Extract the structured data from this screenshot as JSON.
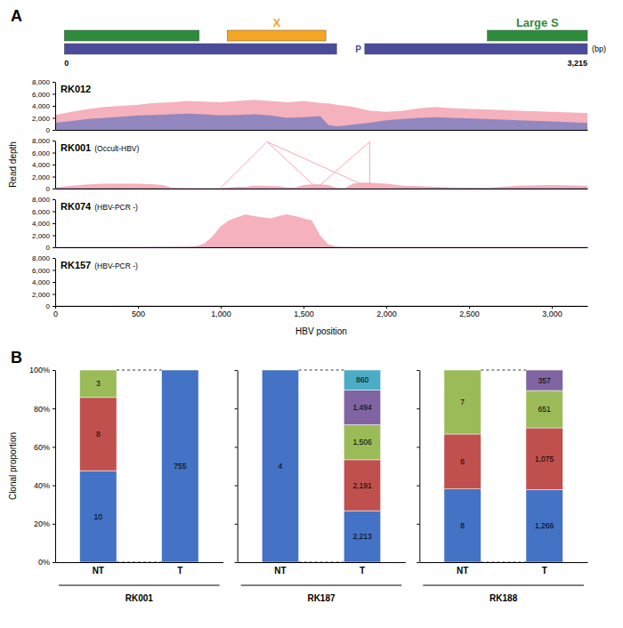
{
  "chart_data": [
    {
      "type": "segments",
      "title": "A",
      "xlim": [
        0,
        3215
      ],
      "tick_labels": false,
      "rows": [
        [
          {
            "start": 55,
            "end": 870,
            "color": "#2e8b3c"
          },
          {
            "start": 1040,
            "end": 1635,
            "color": "#f5a623",
            "label": "X"
          },
          {
            "start": 2610,
            "end": 3215,
            "color": "#2e8b3c",
            "label": "Large S"
          }
        ],
        [
          {
            "start": 55,
            "end": 1700,
            "color": "#4b4b9c"
          },
          {
            "start": 1870,
            "end": 3215,
            "color": "#4b4b9c",
            "label": "P"
          }
        ]
      ],
      "annotations": [
        {
          "text": "0",
          "x": 55
        },
        {
          "text": "3,215",
          "x": 3215
        },
        {
          "text": "(bp)"
        }
      ]
    },
    {
      "type": "area",
      "title": "RK012",
      "xlim": [
        0,
        3215
      ],
      "ylim": [
        0,
        8000
      ],
      "yticks": [
        0,
        {
          "value": 2000,
          "label": "2,000"
        },
        {
          "value": 4000,
          "label": "4,000"
        },
        {
          "value": 6000,
          "label": "6,000"
        },
        {
          "value": 8000,
          "label": "8,000"
        }
      ],
      "tick_labels": "y",
      "series": [
        {
          "color": "#f4a9b5",
          "x": [
            0,
            100,
            200,
            300,
            400,
            500,
            600,
            700,
            800,
            900,
            1000,
            1100,
            1200,
            1300,
            1400,
            1500,
            1600,
            1650,
            1700,
            1750,
            1800,
            1900,
            2000,
            2100,
            2200,
            2300,
            2400,
            2600,
            2800,
            3000,
            3200,
            3215
          ],
          "values": [
            2500,
            3000,
            3500,
            3800,
            4000,
            4200,
            4500,
            4600,
            4800,
            4700,
            4600,
            4800,
            5000,
            4800,
            4600,
            4800,
            4500,
            4400,
            4200,
            4000,
            3800,
            3200,
            3000,
            3200,
            3600,
            3800,
            3600,
            3400,
            3200,
            3000,
            2800,
            2800
          ]
        },
        {
          "color": "#8080c0",
          "x": [
            0,
            100,
            200,
            300,
            400,
            500,
            600,
            700,
            800,
            900,
            1000,
            1100,
            1200,
            1300,
            1400,
            1500,
            1600,
            1650,
            1700,
            1750,
            1800,
            1900,
            2000,
            2100,
            2200,
            2300,
            2400,
            2600,
            2800,
            3000,
            3200,
            3215
          ],
          "values": [
            1200,
            1500,
            1800,
            2000,
            2200,
            2400,
            2500,
            2600,
            2700,
            2600,
            2400,
            2500,
            2600,
            2400,
            2000,
            2100,
            2300,
            800,
            600,
            700,
            900,
            1200,
            1600,
            1800,
            2000,
            2100,
            2000,
            1800,
            1600,
            1400,
            1200,
            1200
          ]
        }
      ]
    },
    {
      "type": "area",
      "title": "RK001",
      "subtitle": "(Occult-HBV)",
      "ylabel": "Read depth",
      "xlim": [
        0,
        3215
      ],
      "ylim": [
        0,
        8000
      ],
      "yticks": [
        0,
        {
          "value": 2000,
          "label": "2,000"
        },
        {
          "value": 4000,
          "label": "4,000"
        },
        {
          "value": 6000,
          "label": "6,000"
        },
        {
          "value": 8000,
          "label": "8,000"
        }
      ],
      "tick_labels": "y",
      "series": [
        {
          "color": "#f4a9b5",
          "x": [
            0,
            100,
            200,
            300,
            400,
            500,
            600,
            650,
            700,
            750,
            800,
            850,
            900,
            950,
            1000,
            1050,
            1100,
            1150,
            1200,
            1250,
            1300,
            1350,
            1400,
            1450,
            1500,
            1550,
            1600,
            1650,
            1700,
            1750,
            1800,
            1850,
            1900,
            1950,
            2000,
            2100,
            2200,
            2400,
            2600,
            2800,
            3000,
            3200,
            3215
          ],
          "values": [
            200,
            500,
            700,
            800,
            800,
            800,
            700,
            600,
            200,
            100,
            100,
            80,
            80,
            80,
            100,
            200,
            300,
            300,
            500,
            500,
            400,
            400,
            200,
            200,
            600,
            700,
            700,
            600,
            100,
            80,
            800,
            1000,
            1000,
            900,
            800,
            500,
            400,
            200,
            100,
            500,
            600,
            500,
            500
          ]
        },
        {
          "color": "#8080c0",
          "x": [
            0,
            200,
            400,
            600,
            700,
            800,
            1000,
            1500,
            2000,
            2200,
            2400,
            2600,
            2800,
            3000,
            3200,
            3215
          ],
          "values": [
            60,
            60,
            60,
            60,
            50,
            40,
            40,
            40,
            40,
            60,
            60,
            60,
            60,
            60,
            60,
            60
          ]
        },
        {
          "type": "line",
          "color": "#f4a9b5",
          "x": [
            1000,
            1280
          ],
          "values": [
            100,
            7800
          ]
        },
        {
          "type": "line",
          "color": "#f4a9b5",
          "x": [
            1280,
            1580
          ],
          "values": [
            7800,
            100
          ]
        },
        {
          "type": "line",
          "color": "#f4a9b5",
          "x": [
            1280,
            1900
          ],
          "values": [
            7800,
            100
          ]
        },
        {
          "type": "line",
          "color": "#f4a9b5",
          "x": [
            1580,
            1900
          ],
          "values": [
            100,
            7800
          ]
        },
        {
          "type": "line",
          "color": "#f4a9b5",
          "x": [
            1900,
            1900
          ],
          "values": [
            100,
            7800
          ]
        }
      ]
    },
    {
      "type": "area",
      "title": "RK074",
      "subtitle": "(HBV-PCR -)",
      "xlim": [
        0,
        3215
      ],
      "ylim": [
        0,
        8000
      ],
      "yticks": [
        0,
        {
          "value": 2000,
          "label": "2,000"
        },
        {
          "value": 4000,
          "label": "4,000"
        },
        {
          "value": 6000,
          "label": "6,000"
        },
        {
          "value": 8000,
          "label": "8,000"
        }
      ],
      "tick_labels": "y",
      "series": [
        {
          "color": "#f4a9b5",
          "x": [
            0,
            100,
            200,
            300,
            400,
            500,
            600,
            700,
            800,
            850,
            900,
            950,
            1000,
            1050,
            1100,
            1150,
            1200,
            1250,
            1300,
            1350,
            1400,
            1450,
            1500,
            1550,
            1600,
            1650,
            1700,
            1800,
            2000,
            2200,
            2400,
            2600,
            2800,
            3000,
            3200,
            3215
          ],
          "values": [
            30,
            30,
            30,
            30,
            30,
            50,
            80,
            80,
            100,
            200,
            600,
            1800,
            3500,
            4500,
            5000,
            5500,
            5200,
            5000,
            4800,
            5200,
            5500,
            5200,
            4800,
            4500,
            2000,
            500,
            100,
            50,
            30,
            30,
            30,
            30,
            30,
            30,
            30,
            30
          ]
        },
        {
          "color": "#8080c0",
          "x": [
            0,
            200,
            400,
            600,
            800,
            1000,
            1200,
            1400,
            1600,
            1800,
            2000,
            2200,
            2400,
            2600,
            2800,
            3000,
            3200,
            3215
          ],
          "values": [
            20,
            30,
            30,
            30,
            30,
            30,
            30,
            30,
            30,
            20,
            20,
            20,
            20,
            20,
            20,
            20,
            20,
            20
          ]
        }
      ]
    },
    {
      "type": "area",
      "title": "RK157",
      "subtitle": "(HBV-PCR -)",
      "xlabel": "HBV position",
      "xlim": [
        0,
        3215
      ],
      "ylim": [
        0,
        8000
      ],
      "xticks": [
        0,
        500,
        {
          "value": 1000,
          "label": "1,000"
        },
        {
          "value": 1500,
          "label": "1,500"
        },
        {
          "value": 2000,
          "label": "2,000"
        },
        {
          "value": 2500,
          "label": "2,500"
        },
        {
          "value": 3000,
          "label": "3,000"
        }
      ],
      "yticks": [
        0,
        {
          "value": 2000,
          "label": "2,000"
        },
        {
          "value": 4000,
          "label": "4,000"
        },
        {
          "value": 6000,
          "label": "6,000"
        },
        {
          "value": 8000,
          "label": "8,000"
        }
      ],
      "series": [
        {
          "color": "#f4a9b5",
          "x": [
            0,
            200,
            400,
            600,
            800,
            1000,
            1200,
            1400,
            1600,
            1800,
            2000,
            2200,
            2400,
            2600,
            2800,
            3000,
            3200,
            3215
          ],
          "values": [
            40,
            50,
            60,
            60,
            60,
            70,
            80,
            70,
            60,
            60,
            70,
            80,
            90,
            70,
            60,
            60,
            50,
            50
          ]
        },
        {
          "color": "#8080c0",
          "x": [
            0,
            200,
            400,
            600,
            800,
            1000,
            1200,
            1400,
            1600,
            1800,
            2000,
            2200,
            2400,
            2600,
            2800,
            3000,
            3200,
            3215
          ],
          "values": [
            30,
            35,
            40,
            40,
            40,
            45,
            50,
            45,
            40,
            40,
            45,
            50,
            55,
            45,
            40,
            40,
            35,
            35
          ]
        }
      ]
    },
    {
      "type": "bar",
      "stacked": true,
      "title": "B",
      "xlabel": "RK001",
      "ylabel": "Clonal proportion",
      "categories": [
        "NT",
        "T"
      ],
      "ylim": [
        0,
        100
      ],
      "yticks": [
        {
          "value": 0,
          "label": "0%"
        },
        {
          "value": 20,
          "label": "20%"
        },
        {
          "value": 40,
          "label": "40%"
        },
        {
          "value": 60,
          "label": "60%"
        },
        {
          "value": 80,
          "label": "80%"
        },
        {
          "value": 100,
          "label": "100%"
        }
      ],
      "series": [
        {
          "color": "#4472c4",
          "values": [
            47.619047619,
            100
          ],
          "labels": [
            "10",
            "755"
          ]
        },
        {
          "color": "#c0504d",
          "values": [
            38.095238095,
            null
          ],
          "labels": [
            "8",
            null
          ]
        },
        {
          "color": "#9bbb59",
          "values": [
            14.285714286,
            null
          ],
          "labels": [
            "3",
            null
          ]
        }
      ]
    },
    {
      "type": "bar",
      "stacked": true,
      "xlabel": "RK187",
      "tick_labels": "x",
      "categories": [
        "NT",
        "T"
      ],
      "ylim": [
        0,
        100
      ],
      "yticks": [
        {
          "value": 0,
          "label": "0%"
        },
        {
          "value": 20,
          "label": "20%"
        },
        {
          "value": 40,
          "label": "40%"
        },
        {
          "value": 60,
          "label": "60%"
        },
        {
          "value": 80,
          "label": "80%"
        },
        {
          "value": 100,
          "label": "100%"
        }
      ],
      "series": [
        {
          "color": "#4472c4",
          "values": [
            100,
            26.7787996
          ],
          "labels": [
            "4",
            "2,213"
          ]
        },
        {
          "color": "#c0504d",
          "values": [
            null,
            26.5125847
          ],
          "labels": [
            null,
            "2,191"
          ]
        },
        {
          "color": "#9bbb59",
          "values": [
            null,
            18.2236205
          ],
          "labels": [
            null,
            "1,506"
          ]
        },
        {
          "color": "#8064a2",
          "values": [
            null,
            18.0784124
          ],
          "labels": [
            null,
            "1,494"
          ]
        },
        {
          "color": "#4bacc6",
          "values": [
            null,
            10.4065828
          ],
          "labels": [
            null,
            "860"
          ]
        }
      ]
    },
    {
      "type": "bar",
      "stacked": true,
      "xlabel": "RK188",
      "tick_labels": "x",
      "categories": [
        "NT",
        "T"
      ],
      "ylim": [
        0,
        100
      ],
      "yticks": [
        {
          "value": 0,
          "label": "0%"
        },
        {
          "value": 20,
          "label": "20%"
        },
        {
          "value": 40,
          "label": "40%"
        },
        {
          "value": 60,
          "label": "60%"
        },
        {
          "value": 80,
          "label": "80%"
        },
        {
          "value": 100,
          "label": "100%"
        }
      ],
      "series": [
        {
          "color": "#4472c4",
          "values": [
            38.095238095,
            37.802329
          ],
          "labels": [
            "8",
            "1,266"
          ]
        },
        {
          "color": "#c0504d",
          "values": [
            28.571428571,
            32.0991341
          ],
          "labels": [
            "6",
            "1,075"
          ]
        },
        {
          "color": "#9bbb59",
          "values": [
            33.333333333,
            19.4386384
          ],
          "labels": [
            "7",
            "651"
          ]
        },
        {
          "color": "#8064a2",
          "values": [
            null,
            10.6598985
          ],
          "labels": [
            null,
            "357"
          ]
        }
      ]
    }
  ]
}
